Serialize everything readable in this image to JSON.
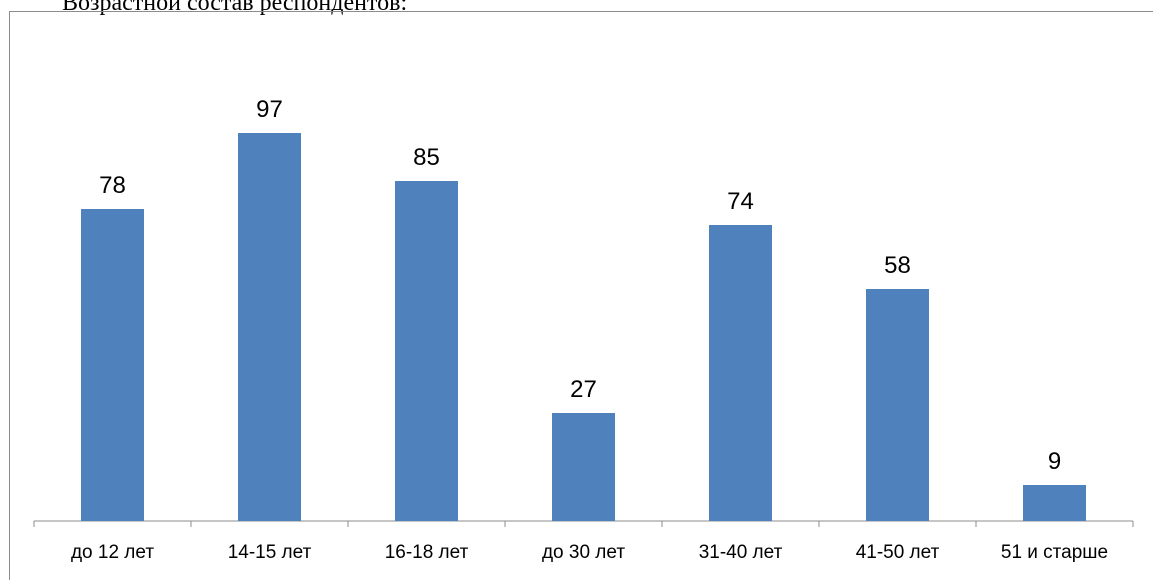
{
  "caption": "Возрастной состав респондентов:",
  "colors": {
    "bar": "#4f81bd",
    "axis": "#8c8c8c"
  },
  "chart_data": {
    "type": "bar",
    "categories": [
      "до 12 лет",
      "14-15 лет",
      "16-18 лет",
      "до 30 лет",
      "31-40 лет",
      "41-50 лет",
      "51 и старше"
    ],
    "values": [
      78,
      97,
      85,
      27,
      74,
      58,
      9
    ],
    "ylim": [
      0,
      100
    ],
    "grid": false,
    "legend": "none",
    "data_labels": true
  }
}
